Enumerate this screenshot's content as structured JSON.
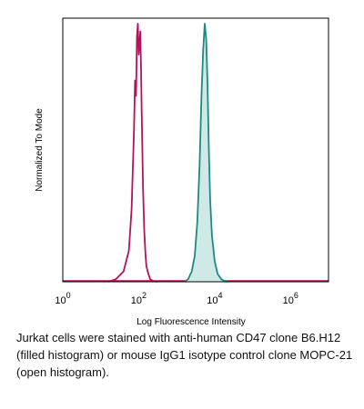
{
  "chart_data": {
    "type": "line",
    "title": "",
    "xlabel": "Log Fluorescence Intensity",
    "ylabel": "Normalized To Mode",
    "x_scale": "log",
    "xlim": [
      1,
      10000000
    ],
    "ylim": [
      0,
      100
    ],
    "x_ticks": [
      {
        "value": 1,
        "base": "10",
        "exp": "0"
      },
      {
        "value": 100,
        "base": "10",
        "exp": "2"
      },
      {
        "value": 10000,
        "base": "10",
        "exp": "4"
      },
      {
        "value": 1000000,
        "base": "10",
        "exp": "6"
      }
    ],
    "grid": false,
    "legend": "none",
    "series": [
      {
        "fill": true,
        "color": "#1f8a80",
        "fill_color": "#cfe9e6",
        "x": [
          1600,
          2000,
          2500,
          3000,
          3500,
          4000,
          4500,
          5000,
          5500,
          6000,
          6500,
          7000,
          7600,
          8500,
          10000,
          12000,
          15000,
          18000,
          22000
        ],
        "y": [
          0,
          1,
          4,
          10,
          23,
          45,
          72,
          90,
          100,
          94,
          76,
          53,
          32,
          18,
          8,
          3,
          1,
          0.3,
          0
        ]
      },
      {
        "fill": false,
        "color": "#b0155a",
        "x": [
          16,
          25,
          40,
          55,
          65,
          75,
          80,
          85,
          90,
          95,
          100,
          105,
          110,
          115,
          120,
          125,
          130,
          140,
          150,
          160,
          180,
          200,
          240,
          300
        ],
        "y": [
          0,
          1,
          4,
          12,
          28,
          58,
          78,
          72,
          95,
          100,
          88,
          92,
          97,
          82,
          66,
          50,
          36,
          20,
          11,
          6,
          3,
          1,
          0.3,
          0
        ]
      }
    ]
  },
  "caption": "Jurkat cells were stained with anti-human CD47 clone B6.H12 (filled histogram) or mouse IgG1 isotype control clone MOPC-21 (open histogram)."
}
